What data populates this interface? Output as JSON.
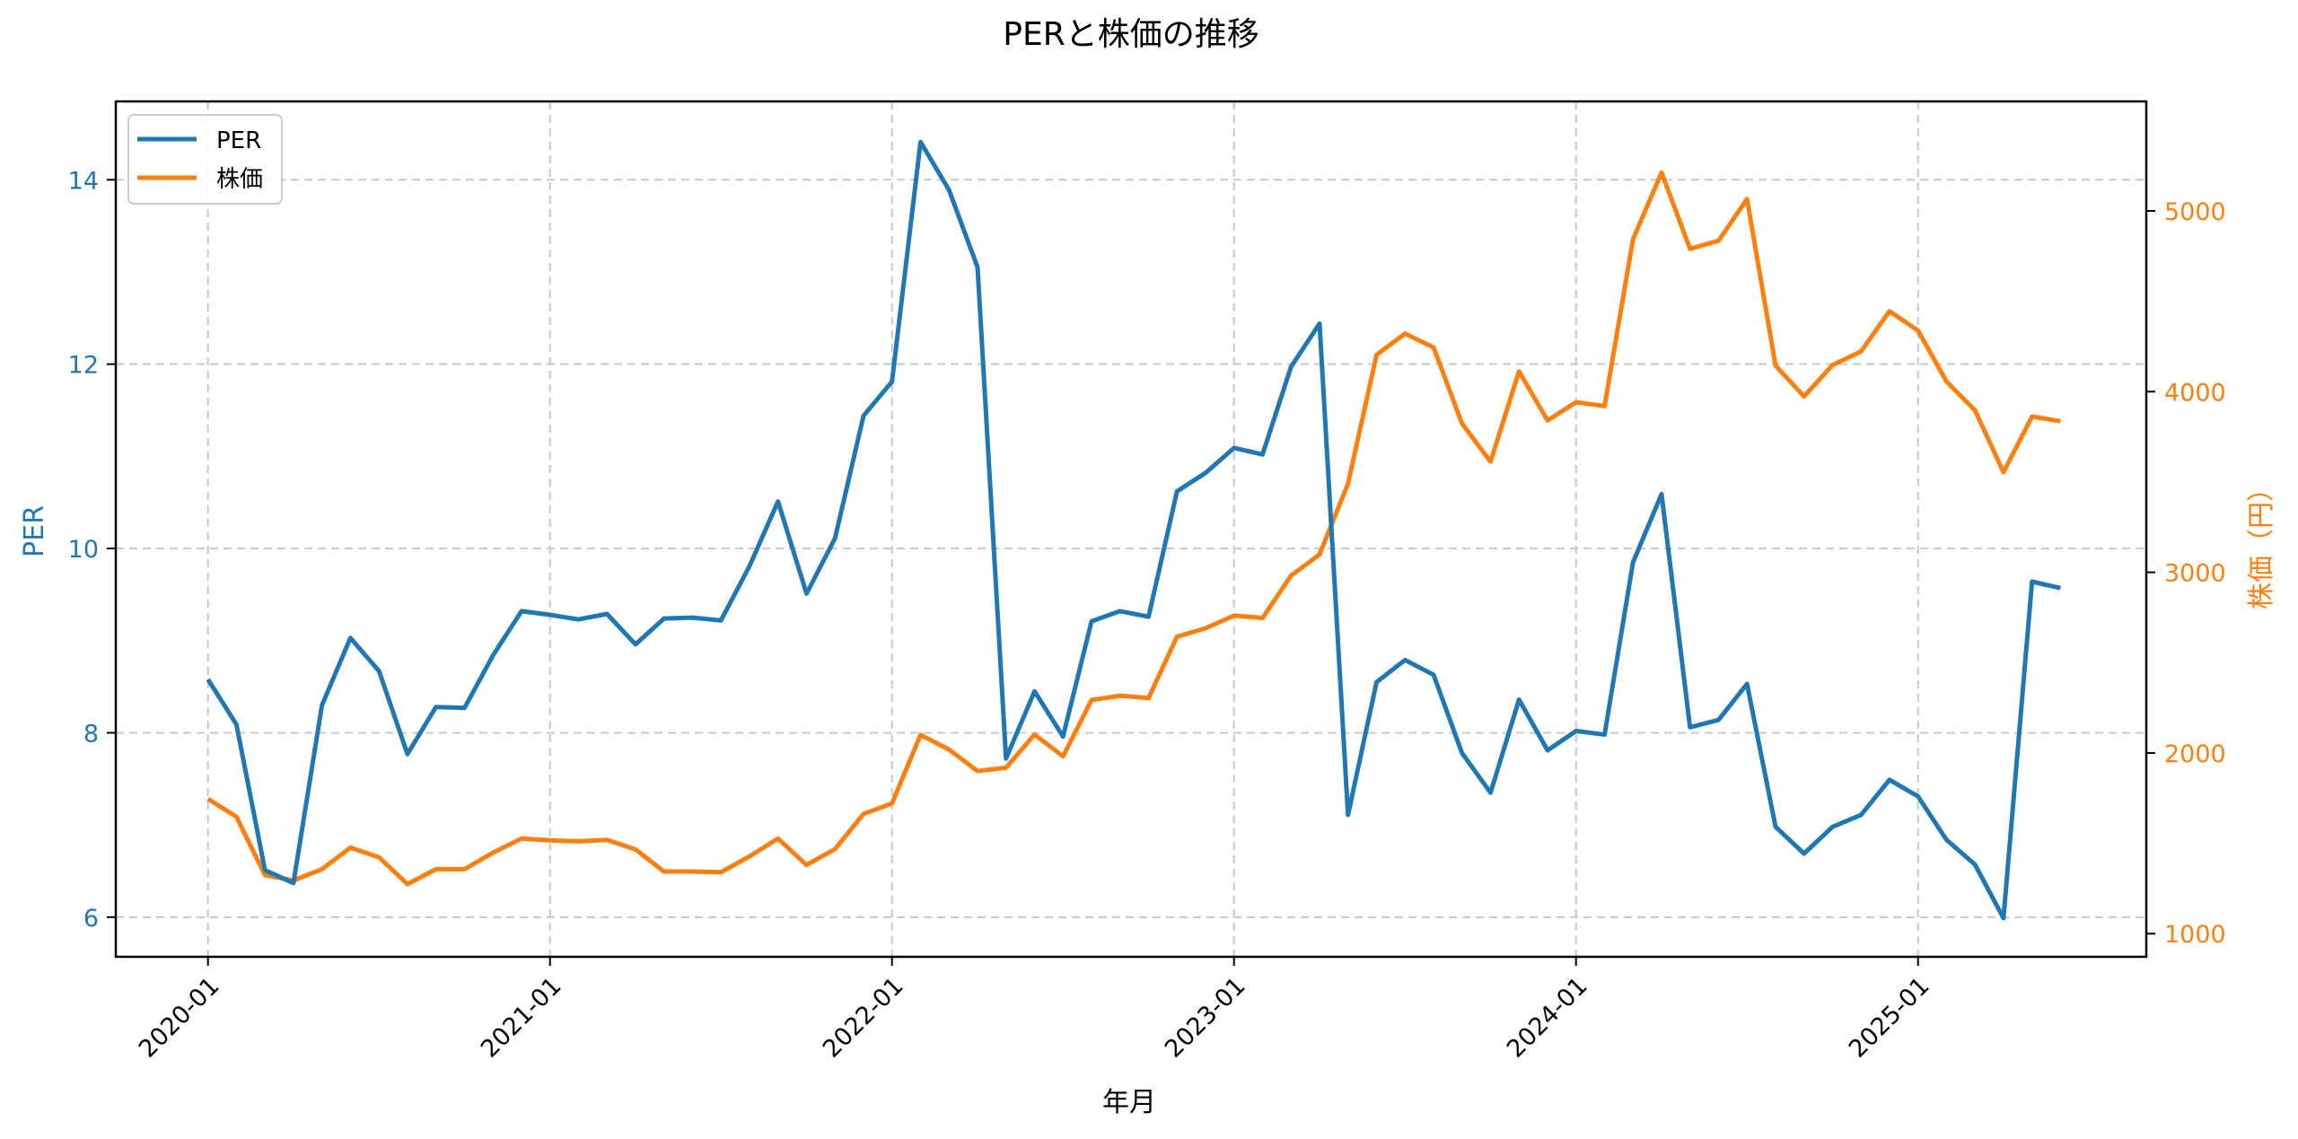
{
  "chart_data": {
    "type": "line",
    "title": "PERと株価の推移",
    "xlabel": "年月",
    "ylabel": "PER",
    "ylabel_right": "株価（円）",
    "grid": true,
    "legend": {
      "position": "upper left",
      "entries": [
        "PER",
        "株価"
      ]
    },
    "x": [
      "2020-01",
      "2020-02",
      "2020-03",
      "2020-04",
      "2020-05",
      "2020-06",
      "2020-07",
      "2020-08",
      "2020-09",
      "2020-10",
      "2020-11",
      "2020-12",
      "2021-01",
      "2021-02",
      "2021-03",
      "2021-04",
      "2021-05",
      "2021-06",
      "2021-07",
      "2021-08",
      "2021-09",
      "2021-10",
      "2021-11",
      "2021-12",
      "2022-01",
      "2022-02",
      "2022-03",
      "2022-04",
      "2022-05",
      "2022-06",
      "2022-07",
      "2022-08",
      "2022-09",
      "2022-10",
      "2022-11",
      "2022-12",
      "2023-01",
      "2023-02",
      "2023-03",
      "2023-04",
      "2023-05",
      "2023-06",
      "2023-07",
      "2023-08",
      "2023-09",
      "2023-10",
      "2023-11",
      "2023-12",
      "2024-01",
      "2024-02",
      "2024-03",
      "2024-04",
      "2024-05",
      "2024-06",
      "2024-07",
      "2024-08",
      "2024-09",
      "2024-10",
      "2024-11",
      "2024-12",
      "2025-01",
      "2025-02",
      "2025-03",
      "2025-04",
      "2025-05",
      "2025-06"
    ],
    "xticks": [
      "2020-01",
      "2021-01",
      "2022-01",
      "2023-01",
      "2024-01",
      "2025-01"
    ],
    "series": [
      {
        "name": "PER",
        "axis": "left",
        "color": "#1f77b4",
        "values": [
          8.58,
          8.09,
          6.51,
          6.37,
          8.3,
          9.03,
          8.67,
          7.77,
          8.28,
          8.27,
          8.84,
          9.32,
          9.28,
          9.23,
          9.29,
          8.96,
          9.24,
          9.25,
          9.22,
          9.81,
          10.51,
          9.51,
          10.11,
          11.44,
          11.81,
          14.41,
          13.89,
          13.05,
          7.72,
          8.45,
          7.96,
          9.21,
          9.32,
          9.26,
          10.62,
          10.82,
          11.09,
          11.02,
          11.97,
          12.44,
          7.11,
          8.55,
          8.79,
          8.63,
          7.78,
          7.35,
          8.36,
          7.81,
          8.02,
          7.98,
          9.85,
          10.59,
          8.06,
          8.14,
          8.53,
          6.98,
          6.69,
          6.98,
          7.11,
          7.49,
          7.31,
          6.84,
          6.57,
          5.99,
          9.64,
          9.57
        ]
      },
      {
        "name": "株価",
        "axis": "right",
        "color": "#ff7f0e",
        "values": [
          1746,
          1647,
          1324,
          1294,
          1357,
          1476,
          1423,
          1274,
          1357,
          1357,
          1448,
          1526,
          1517,
          1511,
          1519,
          1466,
          1344,
          1344,
          1340,
          1428,
          1526,
          1380,
          1468,
          1663,
          1721,
          2100,
          2019,
          1900,
          1918,
          2102,
          1981,
          2293,
          2317,
          2304,
          2644,
          2690,
          2760,
          2747,
          2981,
          3099,
          3490,
          4203,
          4321,
          4245,
          3823,
          3612,
          4112,
          3840,
          3941,
          3920,
          4843,
          5212,
          4790,
          4835,
          5066,
          4144,
          3973,
          4147,
          4222,
          4445,
          4338,
          4056,
          3896,
          3554,
          3862,
          3836
        ]
      }
    ],
    "ylim_left": [
      5.57,
      14.85
    ],
    "yticks_left": [
      6,
      8,
      10,
      12,
      14
    ],
    "ylim_right": [
      872,
      5606
    ],
    "yticks_right": [
      1000,
      2000,
      3000,
      4000,
      5000
    ]
  }
}
